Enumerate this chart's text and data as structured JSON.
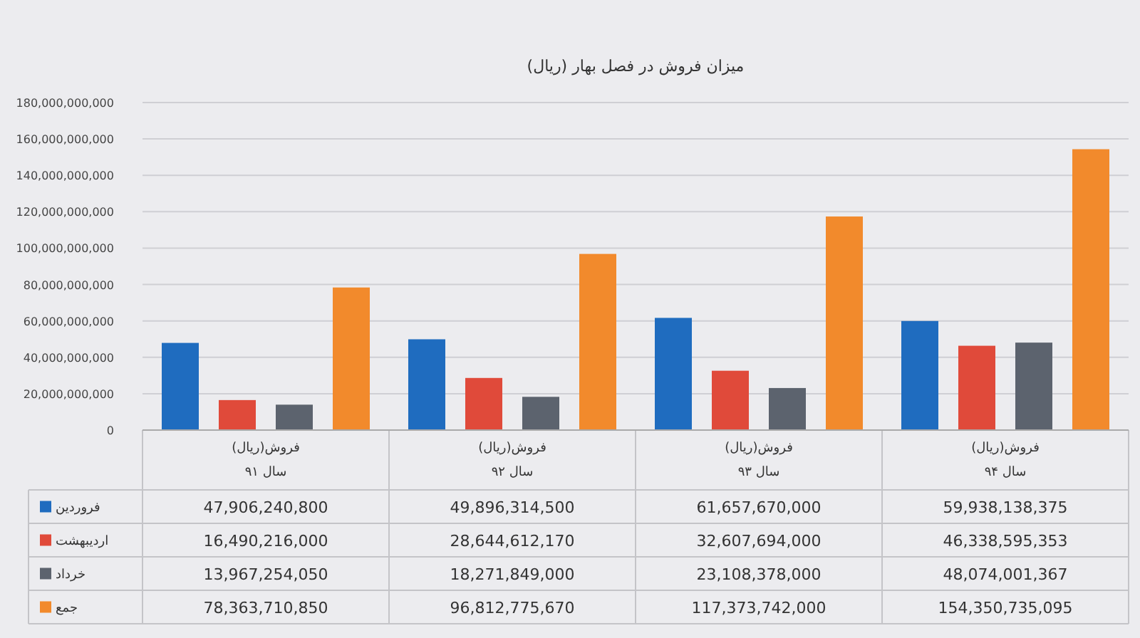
{
  "chart_data": {
    "type": "bar",
    "title": "میزان فروش در فصل بهار (ریال)",
    "categories": [
      "فروش(ریال)\nسال ۹۱",
      "فروش(ریال)\nسال ۹۲",
      "فروش(ریال)\nسال ۹۳",
      "فروش(ریال)\nسال ۹۴"
    ],
    "series": [
      {
        "name": "فروردین",
        "color": "#1f6cbf",
        "values": [
          47906240800,
          49896314500,
          61657670000,
          59938138375
        ],
        "value_labels": [
          "47,906,240,800",
          "49,896,314,500",
          "61,657,670,000",
          "59,938,138,375"
        ]
      },
      {
        "name": "اردیبهشت",
        "color": "#e04a3a",
        "values": [
          16490216000,
          28644612170,
          32607694000,
          46338595353
        ],
        "value_labels": [
          "16,490,216,000",
          "28,644,612,170",
          "32,607,694,000",
          "46,338,595,353"
        ]
      },
      {
        "name": "خرداد",
        "color": "#5c636e",
        "values": [
          13967254050,
          18271849000,
          23108378000,
          48074001367
        ],
        "value_labels": [
          "13,967,254,050",
          "18,271,849,000",
          "23,108,378,000",
          "48,074,001,367"
        ]
      },
      {
        "name": "جمع",
        "color": "#f28a2c",
        "values": [
          78363710850,
          96812775670,
          117373742000,
          154350735095
        ],
        "value_labels": [
          "78,363,710,850",
          "96,812,775,670",
          "117,373,742,000",
          "154,350,735,095"
        ]
      }
    ],
    "ylim": [
      0,
      180000000000
    ],
    "yticks": [
      0,
      {
        "value": 20000000000,
        "label": "20,000,000,000"
      },
      {
        "value": 40000000000,
        "label": "40,000,000,000"
      },
      {
        "value": 60000000000,
        "label": "60,000,000,000"
      },
      {
        "value": 80000000000,
        "label": "80,000,000,000"
      },
      {
        "value": 100000000000,
        "label": "100,000,000,000"
      },
      {
        "value": 120000000000,
        "label": "120,000,000,000"
      },
      {
        "value": 140000000000,
        "label": "140,000,000,000"
      },
      {
        "value": 160000000000,
        "label": "160,000,000,000"
      },
      {
        "value": 180000000000,
        "label": "180,000,000,000"
      }
    ],
    "grid": "y",
    "legend": "bottom left"
  }
}
